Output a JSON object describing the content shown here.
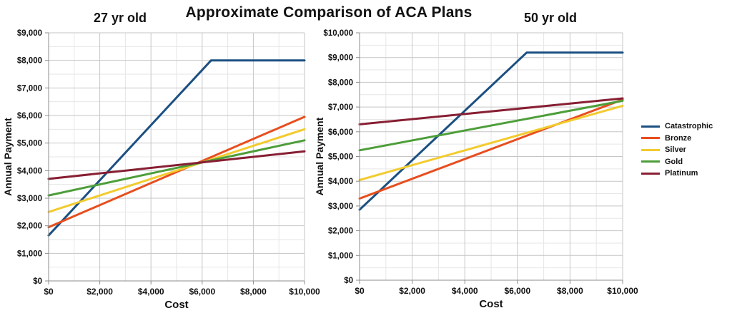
{
  "main_title": "Approximate Comparison of ACA Plans",
  "legend": {
    "position": "right",
    "items": [
      {
        "label": "Catastrophic",
        "color": "#1B4F82"
      },
      {
        "label": "Bronze",
        "color": "#E74E1F"
      },
      {
        "label": "Silver",
        "color": "#F2CB2E"
      },
      {
        "label": "Gold",
        "color": "#4D9E39"
      },
      {
        "label": "Platinum",
        "color": "#871F33"
      }
    ]
  },
  "colors": {
    "catastrophic": "#1B4F82",
    "bronze": "#E74E1F",
    "silver": "#F2CB2E",
    "gold": "#4D9E39",
    "platinum": "#871F33",
    "grid_minor": "#E6E6E6",
    "grid_major": "#C6C6C6",
    "axis": "#8C8C8C",
    "text": "#111111"
  },
  "chart_data": [
    {
      "type": "line",
      "title": "27 yr old",
      "xlabel": "Cost",
      "ylabel": "Annual Payment",
      "xlim": [
        0,
        10000
      ],
      "ylim": [
        0,
        9000
      ],
      "grid": true,
      "x_tick_values": [
        0,
        2000,
        4000,
        6000,
        8000,
        10000
      ],
      "x_tick_labels": [
        "$0",
        "$2,000",
        "$4,000",
        "$6,000",
        "$8,000",
        "$10,000"
      ],
      "x_minor_step": 1000,
      "y_tick_values": [
        0,
        1000,
        2000,
        3000,
        4000,
        5000,
        6000,
        7000,
        8000,
        9000
      ],
      "y_tick_labels": [
        "$0",
        "$1,000",
        "$2,000",
        "$3,000",
        "$4,000",
        "$5,000",
        "$6,000",
        "$7,000",
        "$8,000",
        "$9,000"
      ],
      "y_minor_step": 500,
      "series": [
        {
          "name": "Catastrophic",
          "color": "#1B4F82",
          "points": [
            [
              0,
              1650
            ],
            [
              6350,
              8000
            ],
            [
              10000,
              8000
            ]
          ]
        },
        {
          "name": "Bronze",
          "color": "#E74E1F",
          "points": [
            [
              0,
              1950
            ],
            [
              10000,
              5950
            ]
          ]
        },
        {
          "name": "Silver",
          "color": "#F2CB2E",
          "points": [
            [
              0,
              2500
            ],
            [
              10000,
              5500
            ]
          ]
        },
        {
          "name": "Gold",
          "color": "#4D9E39",
          "points": [
            [
              0,
              3100
            ],
            [
              10000,
              5100
            ]
          ]
        },
        {
          "name": "Platinum",
          "color": "#871F33",
          "points": [
            [
              0,
              3700
            ],
            [
              10000,
              4700
            ]
          ]
        }
      ]
    },
    {
      "type": "line",
      "title": "50 yr old",
      "xlabel": "Cost",
      "ylabel": "Annual Payment",
      "xlim": [
        0,
        10000
      ],
      "ylim": [
        0,
        10000
      ],
      "grid": true,
      "x_tick_values": [
        0,
        2000,
        4000,
        6000,
        8000,
        10000
      ],
      "x_tick_labels": [
        "$0",
        "$2,000",
        "$4,000",
        "$6,000",
        "$8,000",
        "$10,000"
      ],
      "x_minor_step": 1000,
      "y_tick_values": [
        0,
        1000,
        2000,
        3000,
        4000,
        5000,
        6000,
        7000,
        8000,
        9000,
        10000
      ],
      "y_tick_labels": [
        "$0",
        "$1,000",
        "$2,000",
        "$3,000",
        "$4,000",
        "$5,000",
        "$6,000",
        "$7,000",
        "$8,000",
        "$9,000",
        "$10,000"
      ],
      "y_minor_step": 500,
      "series": [
        {
          "name": "Catastrophic",
          "color": "#1B4F82",
          "points": [
            [
              0,
              2850
            ],
            [
              6350,
              9200
            ],
            [
              10000,
              9200
            ]
          ]
        },
        {
          "name": "Bronze",
          "color": "#E74E1F",
          "points": [
            [
              0,
              3300
            ],
            [
              10000,
              7300
            ]
          ]
        },
        {
          "name": "Silver",
          "color": "#F2CB2E",
          "points": [
            [
              0,
              4050
            ],
            [
              10000,
              7050
            ]
          ]
        },
        {
          "name": "Gold",
          "color": "#4D9E39",
          "points": [
            [
              0,
              5250
            ],
            [
              10000,
              7250
            ]
          ]
        },
        {
          "name": "Platinum",
          "color": "#871F33",
          "points": [
            [
              0,
              6300
            ],
            [
              10000,
              7350
            ]
          ]
        }
      ]
    }
  ]
}
